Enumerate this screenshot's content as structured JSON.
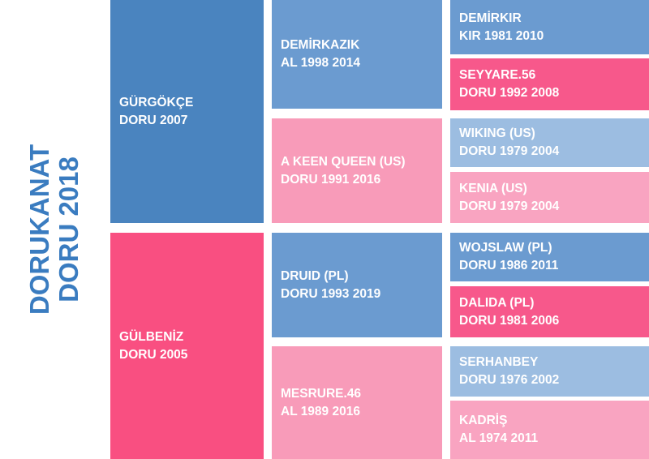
{
  "subject": {
    "name": "DORUKANAT",
    "info": "DORU 2018"
  },
  "nodes": [
    {
      "name": "GÜRGÖKÇE",
      "info": "DORU 2007"
    },
    {
      "name": "GÜLBENİZ",
      "info": "DORU 2005"
    },
    {
      "name": "DEMİRKAZIK",
      "info": "AL 1998 2014"
    },
    {
      "name": "A KEEN QUEEN (US)",
      "info": "DORU 1991 2016"
    },
    {
      "name": "DRUID (PL)",
      "info": "DORU 1993 2019"
    },
    {
      "name": "MESRURE.46",
      "info": "AL 1989 2016"
    },
    {
      "name": "DEMİRKIR",
      "info": "KIR 1981 2010"
    },
    {
      "name": "SEYYARE.56",
      "info": "DORU 1992 2008"
    },
    {
      "name": "WIKING (US)",
      "info": "DORU 1979 2004"
    },
    {
      "name": "KENIA (US)",
      "info": "DORU 1979 2004"
    },
    {
      "name": "WOJSLAW (PL)",
      "info": "DORU 1986 2011"
    },
    {
      "name": "DALIDA (PL)",
      "info": "DORU 1981 2006"
    },
    {
      "name": "SERHANBEY",
      "info": "DORU 1976 2002"
    },
    {
      "name": "KADRİŞ",
      "info": "AL 1974 2011"
    }
  ]
}
